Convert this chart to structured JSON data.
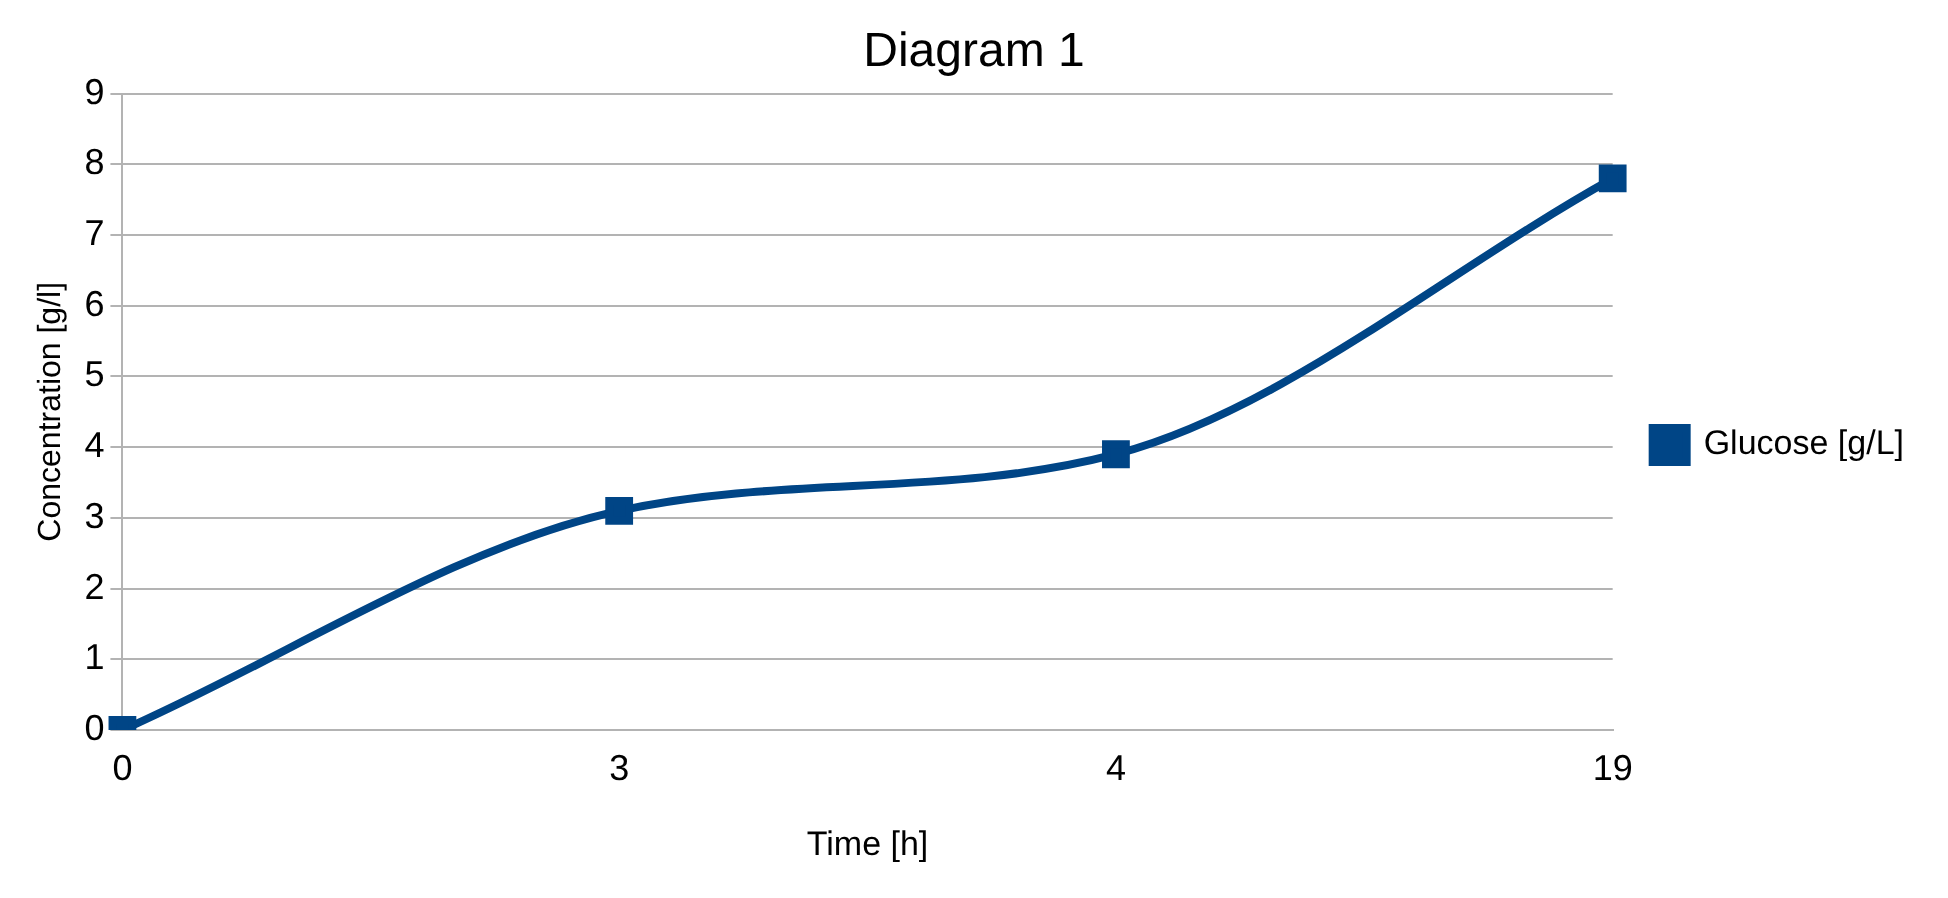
{
  "chart_data": {
    "type": "line",
    "title": "Diagram 1",
    "xlabel": "Time [h]",
    "ylabel": "Concentration [g/l]",
    "categories": [
      "0",
      "3",
      "4",
      "19"
    ],
    "series": [
      {
        "name": "Glucose [g/L]",
        "color": "#004586",
        "values": [
          0,
          3.1,
          3.9,
          7.8
        ]
      }
    ],
    "ylim": [
      0,
      9
    ],
    "yticks": [
      0,
      1,
      2,
      3,
      4,
      5,
      6,
      7,
      8,
      9
    ],
    "grid": "y",
    "legend": "right",
    "marker": "square",
    "line_style": "solid"
  }
}
